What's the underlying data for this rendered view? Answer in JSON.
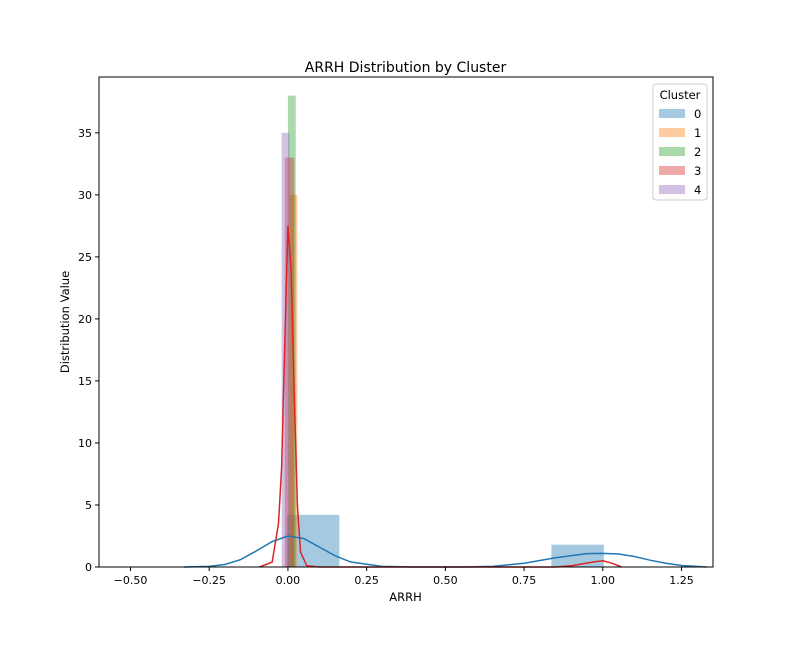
{
  "chart_data": {
    "type": "histogram",
    "title": "ARRH Distribution by Cluster",
    "xlabel": "ARRH",
    "ylabel": "Distribution Value",
    "xlim": [
      -0.6,
      1.35
    ],
    "ylim": [
      0,
      39.5
    ],
    "xticks": [
      -0.5,
      -0.25,
      0.0,
      0.25,
      0.5,
      0.75,
      1.0,
      1.25
    ],
    "xtick_labels": [
      "−0.50",
      "−0.25",
      "0.00",
      "0.25",
      "0.50",
      "0.75",
      "1.00",
      "1.25"
    ],
    "yticks": [
      0,
      5,
      10,
      15,
      20,
      25,
      30,
      35
    ],
    "ytick_labels": [
      "0",
      "5",
      "10",
      "15",
      "20",
      "25",
      "30",
      "35"
    ],
    "grid": false,
    "legend": {
      "title": "Cluster",
      "placement": "top-right",
      "entries": [
        "0",
        "1",
        "2",
        "3",
        "4"
      ]
    },
    "series": [
      {
        "name": "0",
        "color": "#1f77b4",
        "bars": [
          {
            "x0": -0.0033,
            "x1": 0.1633,
            "height": 4.2
          },
          {
            "x0": 0.8367,
            "x1": 1.0033,
            "height": 1.8
          }
        ],
        "kde": [
          [
            -0.33,
            0
          ],
          [
            -0.25,
            0.05
          ],
          [
            -0.2,
            0.2
          ],
          [
            -0.15,
            0.6
          ],
          [
            -0.1,
            1.3
          ],
          [
            -0.05,
            2.05
          ],
          [
            0,
            2.5
          ],
          [
            0.05,
            2.3
          ],
          [
            0.1,
            1.6
          ],
          [
            0.15,
            0.9
          ],
          [
            0.2,
            0.4
          ],
          [
            0.3,
            0.05
          ],
          [
            0.4,
            0.0
          ],
          [
            0.55,
            0.0
          ],
          [
            0.65,
            0.05
          ],
          [
            0.75,
            0.3
          ],
          [
            0.85,
            0.75
          ],
          [
            0.95,
            1.08
          ],
          [
            1.0,
            1.1
          ],
          [
            1.05,
            1.05
          ],
          [
            1.1,
            0.85
          ],
          [
            1.15,
            0.55
          ],
          [
            1.2,
            0.3
          ],
          [
            1.25,
            0.12
          ],
          [
            1.33,
            0.0
          ]
        ]
      },
      {
        "name": "1",
        "color": "#ff7f0e",
        "bars": [
          {
            "x0": 0.005,
            "x1": 0.03,
            "height": 30
          }
        ]
      },
      {
        "name": "2",
        "color": "#2ca02c",
        "bars": [
          {
            "x0": 0.0,
            "x1": 0.025,
            "height": 38
          }
        ]
      },
      {
        "name": "3",
        "color": "#d62728",
        "bars": [
          {
            "x0": -0.01,
            "x1": 0.02,
            "height": 33
          }
        ],
        "kde": [
          [
            -0.09,
            0
          ],
          [
            -0.05,
            0.4
          ],
          [
            -0.03,
            3.5
          ],
          [
            -0.02,
            8
          ],
          [
            -0.01,
            18
          ],
          [
            0.0,
            27.5
          ],
          [
            0.01,
            24
          ],
          [
            0.02,
            14
          ],
          [
            0.03,
            5
          ],
          [
            0.04,
            1.2
          ],
          [
            0.06,
            0.1
          ],
          [
            0.1,
            0
          ],
          [
            0.5,
            0
          ],
          [
            0.85,
            0
          ],
          [
            0.9,
            0.1
          ],
          [
            0.97,
            0.4
          ],
          [
            1.0,
            0.5
          ],
          [
            1.03,
            0.3
          ],
          [
            1.06,
            0
          ]
        ]
      },
      {
        "name": "4",
        "color": "#9467bd",
        "bars": [
          {
            "x0": -0.02,
            "x1": 0.005,
            "height": 35
          }
        ]
      }
    ]
  }
}
